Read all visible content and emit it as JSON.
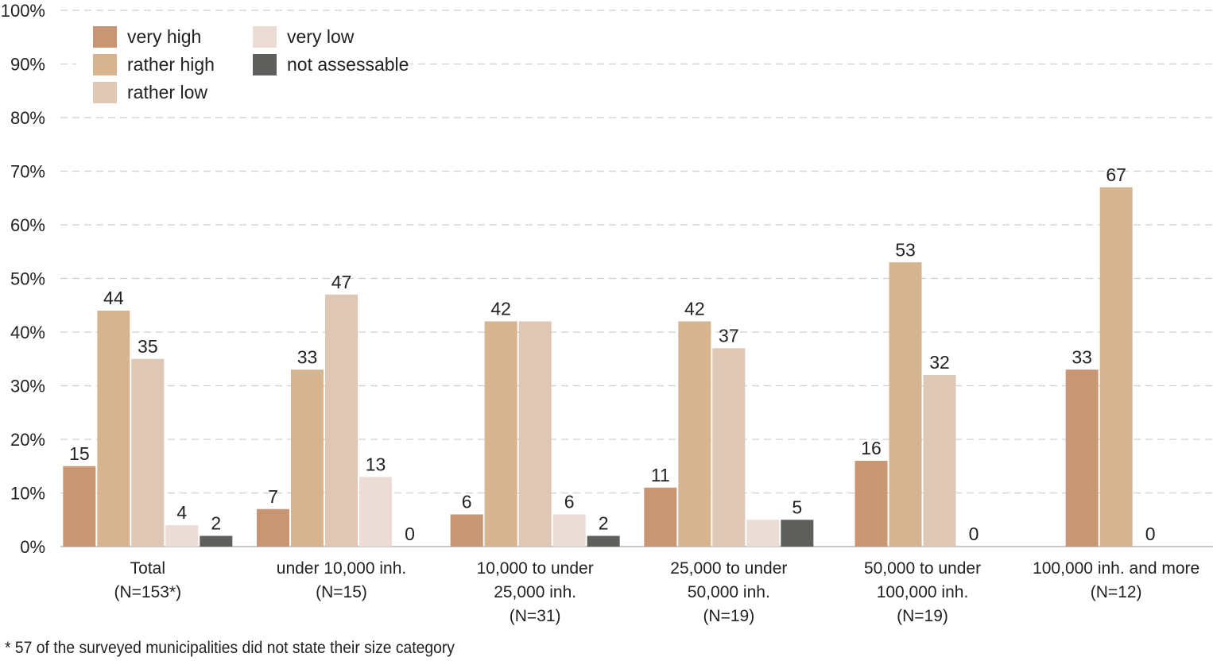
{
  "chart_data": {
    "type": "bar",
    "title": "",
    "xlabel": "",
    "ylabel": "",
    "ylim": [
      0,
      100
    ],
    "y_ticks": [
      "0%",
      "10%",
      "20%",
      "30%",
      "40%",
      "50%",
      "60%",
      "70%",
      "80%",
      "90%",
      "100%"
    ],
    "grid": "horizontal dashed",
    "legend_position": "top-left",
    "categories": [
      [
        "Total",
        "(N=153*)"
      ],
      [
        "under 10,000 inh.",
        "(N=15)"
      ],
      [
        "10,000 to under",
        "25,000 inh.",
        "(N=31)"
      ],
      [
        "25,000 to under",
        "50,000 inh.",
        "(N=19)"
      ],
      [
        "50,000 to under",
        "100,000 inh.",
        "(N=19)"
      ],
      [
        "100,000 inh. and more",
        "(N=12)"
      ]
    ],
    "series": [
      {
        "name": "very high",
        "color": "#c99674",
        "values": [
          15,
          7,
          6,
          11,
          16,
          33
        ],
        "labels": [
          "15",
          "7",
          "6",
          "11",
          "16",
          "33"
        ]
      },
      {
        "name": "rather high",
        "color": "#d5b48f",
        "values": [
          44,
          33,
          42,
          42,
          53,
          67
        ],
        "labels": [
          "44",
          "33",
          "42",
          "42",
          "53",
          "67"
        ]
      },
      {
        "name": "rather low",
        "color": "#dfc7b5",
        "values": [
          35,
          47,
          42,
          37,
          32,
          null
        ],
        "labels": [
          "35",
          "47",
          "",
          "37",
          "32",
          ""
        ]
      },
      {
        "name": "very low",
        "color": "#ebddd5",
        "values": [
          4,
          13,
          6,
          5,
          0,
          null
        ],
        "labels": [
          "4",
          "13",
          "6",
          "",
          "0",
          ""
        ]
      },
      {
        "name": "not assessable",
        "color": "#5f5f5d",
        "values": [
          2,
          0,
          2,
          5,
          null,
          0
        ],
        "labels": [
          "2",
          "0",
          "2",
          "5",
          "",
          "0"
        ]
      }
    ]
  },
  "footnote": "* 57 of the surveyed municipalities did not state their size category"
}
